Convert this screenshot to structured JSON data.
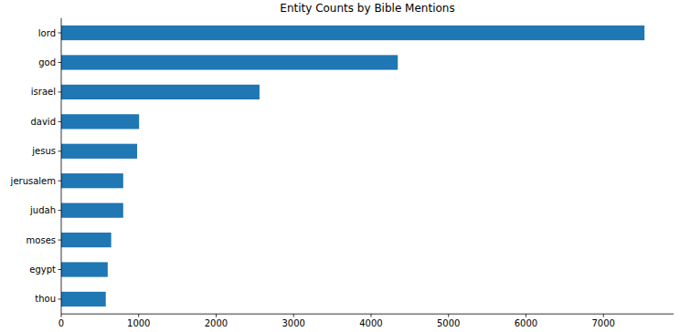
{
  "chart_data": {
    "type": "bar",
    "orientation": "horizontal",
    "title": "Entity Counts by Bible Mentions",
    "categories": [
      "lord",
      "god",
      "israel",
      "david",
      "jesus",
      "jerusalem",
      "judah",
      "moses",
      "egypt",
      "thou"
    ],
    "values": [
      7530,
      4345,
      2560,
      1005,
      980,
      800,
      800,
      645,
      600,
      575
    ],
    "color": "#1f77b4",
    "xlim": [
      0,
      7906
    ],
    "xticks": [
      0,
      1000,
      2000,
      3000,
      4000,
      5000,
      6000,
      7000
    ],
    "grid": false
  }
}
